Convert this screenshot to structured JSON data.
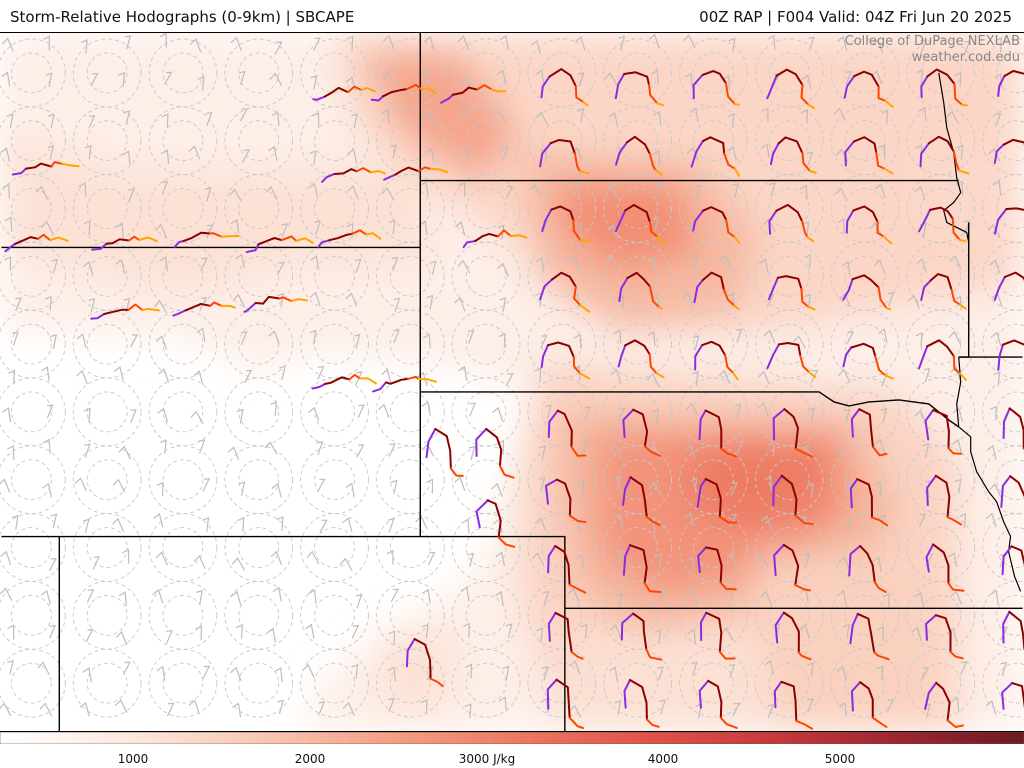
{
  "header": {
    "title_left": "Storm-Relative Hodographs (0-9km) | SBCAPE",
    "title_right": "00Z RAP | F004 Valid: 04Z Fri Jun 20 2025"
  },
  "credit": {
    "line1": "College of DuPage NEXLAB",
    "line2": "weather.cod.edu"
  },
  "colorbar": {
    "labels": [
      "1000",
      "2000",
      "3000 J/kg",
      "4000",
      "5000"
    ],
    "colors": [
      "#ffffff",
      "#fde9df",
      "#f9c9b4",
      "#f4a287",
      "#ee7b63",
      "#e2554a",
      "#c93a3c",
      "#9e2631",
      "#6e1a22"
    ]
  },
  "hodograph_colors": {
    "0-1km": "#8a2be2",
    "1-3km": "#8b0000",
    "3-6km": "#ff4500",
    "6-9km": "#ffa500"
  }
}
